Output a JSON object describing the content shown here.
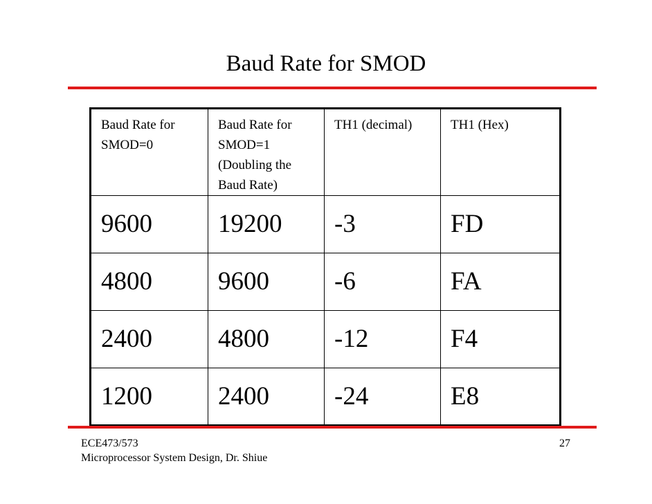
{
  "slide": {
    "title": "Baud Rate for SMOD",
    "accent_color": "#e01b1b"
  },
  "table": {
    "headers": [
      "Baud Rate for SMOD=0",
      "Baud Rate for SMOD=1 (Doubling the Baud Rate)",
      "TH1 (decimal)",
      "TH1 (Hex)"
    ],
    "rows": [
      [
        "9600",
        "19200",
        "-3",
        "FD"
      ],
      [
        "4800",
        "9600",
        "-6",
        "FA"
      ],
      [
        "2400",
        "4800",
        "-12",
        "F4"
      ],
      [
        "1200",
        "2400",
        "-24",
        "E8"
      ]
    ]
  },
  "footer": {
    "course": "ECE473/573",
    "subtitle": "Microprocessor System Design, Dr. Shiue",
    "page_number": "27"
  }
}
